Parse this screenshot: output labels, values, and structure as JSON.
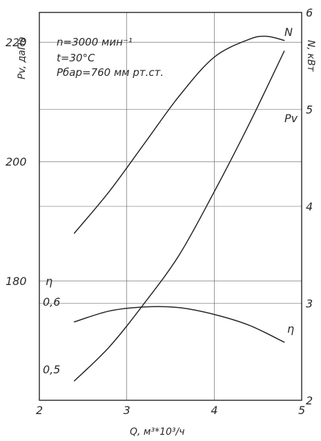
{
  "chart_data": {
    "type": "line",
    "xlabel": "Q, м³*10³/ч",
    "xlim": [
      2,
      5
    ],
    "x_ticks": [
      "2",
      "3",
      "4",
      "5"
    ],
    "axes": {
      "pv": {
        "label": "Pv, даПа",
        "lim": [
          160,
          225
        ],
        "ticks": [
          "180",
          "200",
          "220"
        ]
      },
      "n": {
        "label": "N, кВт",
        "lim": [
          2,
          6
        ],
        "ticks": [
          "2",
          "3",
          "4",
          "5",
          "6"
        ]
      },
      "eta": {
        "label": "η",
        "lim": [
          0.5,
          0.6
        ],
        "ticks": [
          "0,5",
          "0,6"
        ]
      }
    },
    "grid": true,
    "annotations": [
      "n=3000 мин⁻¹",
      "t=30°C",
      "Pбар=760 мм рт.ст."
    ],
    "series": [
      {
        "name": "Pv",
        "axis": "pv",
        "x": [
          2.4,
          2.8,
          3.2,
          3.6,
          4.0,
          4.4,
          4.6,
          4.8
        ],
        "y": [
          188,
          195,
          203,
          211,
          217.5,
          220.5,
          221,
          220.3
        ]
      },
      {
        "name": "N",
        "axis": "n",
        "x": [
          2.4,
          2.8,
          3.2,
          3.6,
          4.0,
          4.4,
          4.8
        ],
        "y": [
          2.2,
          2.55,
          3.0,
          3.5,
          4.15,
          4.85,
          5.6
        ]
      },
      {
        "name": "η",
        "axis": "eta",
        "x": [
          2.4,
          2.8,
          3.2,
          3.6,
          4.0,
          4.4,
          4.8
        ],
        "y": [
          0.57,
          0.586,
          0.592,
          0.591,
          0.581,
          0.565,
          0.54
        ]
      }
    ]
  }
}
